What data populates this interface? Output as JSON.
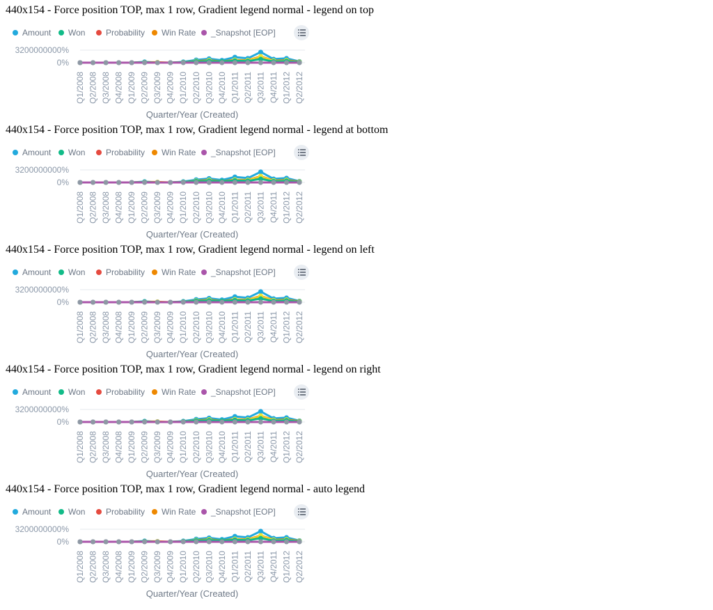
{
  "colors": {
    "Amount": "#22aadd",
    "Won": "#11bb88",
    "Probability": "#e54a3f",
    "Win Rate": "#ee8800",
    "_Snapshot [EOP]": "#aa55aa",
    "tick_text": "#8a97a8",
    "axis_title": "#6f7a88",
    "legend_text": "#6b7685",
    "grid": "#e6e9ee",
    "legend_button_bg": "#e9edf2",
    "legend_button_icon": "#4a5563",
    "marker_overlay": "#8e98a4",
    "highlight": "#f3e530"
  },
  "charts": [
    {
      "title": "440x154 - Force position TOP, max 1 row, Gradient legend normal - legend on top"
    },
    {
      "title": "440x154 - Force position TOP, max 1 row, Gradient legend normal - legend at bottom"
    },
    {
      "title": "440x154 - Force position TOP, max 1 row, Gradient legend normal - legend on left"
    },
    {
      "title": "440x154 - Force position TOP, max 1 row, Gradient legend normal - legend on right"
    },
    {
      "title": "440x154 - Force position TOP, max 1 row, Gradient legend normal - auto legend"
    }
  ],
  "chart_data": {
    "type": "line",
    "legend_position": "top",
    "legend": [
      "Amount",
      "Won",
      "Probability",
      "Win Rate",
      "_Snapshot [EOP]"
    ],
    "categories": [
      "Q1/2008",
      "Q2/2008",
      "Q3/2008",
      "Q4/2008",
      "Q1/2009",
      "Q2/2009",
      "Q3/2009",
      "Q4/2009",
      "Q1/2010",
      "Q2/2010",
      "Q3/2010",
      "Q4/2010",
      "Q1/2011",
      "Q2/2011",
      "Q3/2011",
      "Q4/2011",
      "Q1/2012",
      "Q2/2012"
    ],
    "xlabel": "Quarter/Year (Created)",
    "yticks": [
      "3200000000%",
      "0%"
    ],
    "ylim": [
      0,
      3200000000
    ],
    "grid": true,
    "series": [
      {
        "name": "Amount",
        "values": [
          0,
          0,
          0,
          0,
          0,
          200000000,
          0,
          0,
          200000000,
          700000000,
          1000000000,
          600000000,
          1400000000,
          1100000000,
          2700000000,
          900000000,
          1100000000,
          300000000
        ]
      },
      {
        "name": "Won",
        "values": [
          0,
          0,
          0,
          0,
          0,
          100000000,
          0,
          0,
          100000000,
          300000000,
          400000000,
          300000000,
          500000000,
          400000000,
          900000000,
          300000000,
          400000000,
          100000000
        ]
      },
      {
        "name": "Probability",
        "values": [
          0,
          0,
          0,
          0,
          0,
          0,
          0,
          0,
          0,
          0,
          0,
          0,
          0,
          0,
          0,
          0,
          0,
          0
        ]
      },
      {
        "name": "Win Rate",
        "values": [
          0,
          0,
          0,
          0,
          0,
          100000000,
          100000000,
          0,
          100000000,
          400000000,
          600000000,
          300000000,
          700000000,
          600000000,
          1600000000,
          500000000,
          600000000,
          200000000
        ]
      },
      {
        "name": "_Snapshot [EOP]",
        "values": [
          0,
          0,
          0,
          0,
          0,
          0,
          0,
          0,
          0,
          0,
          0,
          0,
          0,
          0,
          0,
          0,
          0,
          0
        ]
      }
    ]
  }
}
